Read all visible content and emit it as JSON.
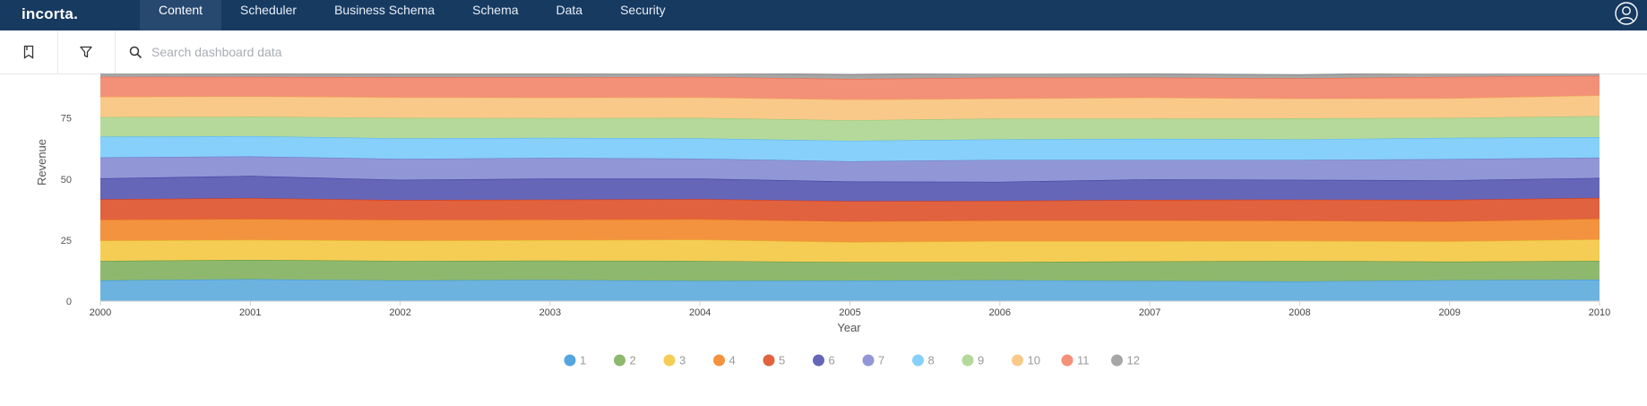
{
  "app": {
    "logo": "incorta."
  },
  "nav": {
    "items": [
      {
        "label": "Content",
        "active": true
      },
      {
        "label": "Scheduler",
        "active": false
      },
      {
        "label": "Business Schema",
        "active": false
      },
      {
        "label": "Schema",
        "active": false
      },
      {
        "label": "Data",
        "active": false
      },
      {
        "label": "Security",
        "active": false
      }
    ]
  },
  "toolbar": {
    "bookmark_icon": "bookmark-icon",
    "filter_icon": "filter-icon",
    "search_icon": "search-icon",
    "search_placeholder": "Search dashboard data"
  },
  "colors": {
    "topbar": "#173a61",
    "nav_active": "#27486f"
  },
  "chart_data": {
    "type": "area",
    "stacked": true,
    "title": "",
    "xlabel": "Year",
    "ylabel": "Revenue",
    "x": [
      2000,
      2001,
      2002,
      2003,
      2004,
      2005,
      2006,
      2007,
      2008,
      2009,
      2010
    ],
    "yticks": [
      0,
      25,
      50,
      75
    ],
    "ylim": [
      0,
      94
    ],
    "grid": true,
    "legend_position": "bottom",
    "series": [
      {
        "name": "1",
        "color": "#3e9bd6",
        "fill": "#6cb3e0",
        "values": [
          8.5,
          9.0,
          8.5,
          8.7,
          8.3,
          8.4,
          8.6,
          8.3,
          8.1,
          8.6,
          8.8
        ]
      },
      {
        "name": "2",
        "color": "#5b9a3a",
        "fill": "#8fb86f",
        "values": [
          8.0,
          7.9,
          8.0,
          7.9,
          8.2,
          7.6,
          7.4,
          8.0,
          8.4,
          7.6,
          7.7
        ]
      },
      {
        "name": "3",
        "color": "#eab62a",
        "fill": "#f5cd55",
        "values": [
          8.3,
          8.2,
          8.3,
          8.4,
          8.7,
          8.2,
          8.6,
          8.3,
          8.2,
          8.3,
          8.8
        ]
      },
      {
        "name": "4",
        "color": "#e8741c",
        "fill": "#f39340",
        "values": [
          8.6,
          8.6,
          8.5,
          8.4,
          8.4,
          8.5,
          8.5,
          8.5,
          8.3,
          8.2,
          8.5
        ]
      },
      {
        "name": "5",
        "color": "#d7391c",
        "fill": "#e0623f",
        "values": [
          8.3,
          8.5,
          8.1,
          8.2,
          8.2,
          8.3,
          8.0,
          8.4,
          8.6,
          8.8,
          8.5
        ]
      },
      {
        "name": "6",
        "color": "#3f3f9e",
        "fill": "#6666b8",
        "values": [
          8.6,
          9.1,
          8.3,
          8.6,
          8.4,
          8.0,
          7.8,
          8.4,
          8.1,
          8.0,
          8.2
        ]
      },
      {
        "name": "7",
        "color": "#7478c9",
        "fill": "#9197d6",
        "values": [
          8.6,
          8.0,
          8.6,
          8.5,
          8.2,
          8.3,
          9.0,
          8.0,
          8.2,
          8.7,
          8.3
        ]
      },
      {
        "name": "8",
        "color": "#5bb8f0",
        "fill": "#86d0fb",
        "values": [
          8.5,
          8.3,
          8.4,
          8.2,
          8.3,
          8.4,
          8.4,
          8.6,
          8.4,
          8.7,
          8.4
        ]
      },
      {
        "name": "9",
        "color": "#97c97a",
        "fill": "#b5d99a",
        "values": [
          8.0,
          8.0,
          8.4,
          8.1,
          8.4,
          8.4,
          8.5,
          8.3,
          8.6,
          8.2,
          8.6
        ]
      },
      {
        "name": "10",
        "color": "#f4ac56",
        "fill": "#f9c98a",
        "values": [
          8.3,
          8.3,
          8.4,
          8.4,
          8.4,
          8.5,
          8.2,
          8.6,
          8.1,
          8.0,
          8.5
        ]
      },
      {
        "name": "11",
        "color": "#ef6b4c",
        "fill": "#f29178",
        "values": [
          8.2,
          8.0,
          8.2,
          8.3,
          8.4,
          8.4,
          8.6,
          8.2,
          8.3,
          8.8,
          8.0
        ]
      },
      {
        "name": "12",
        "color": "#8e8e8e",
        "fill": "#a6a6a6",
        "values": [
          1.5,
          1.2,
          1.5,
          1.4,
          1.6,
          1.8,
          2.0,
          1.5,
          1.4,
          1.8,
          1.5
        ]
      }
    ]
  }
}
